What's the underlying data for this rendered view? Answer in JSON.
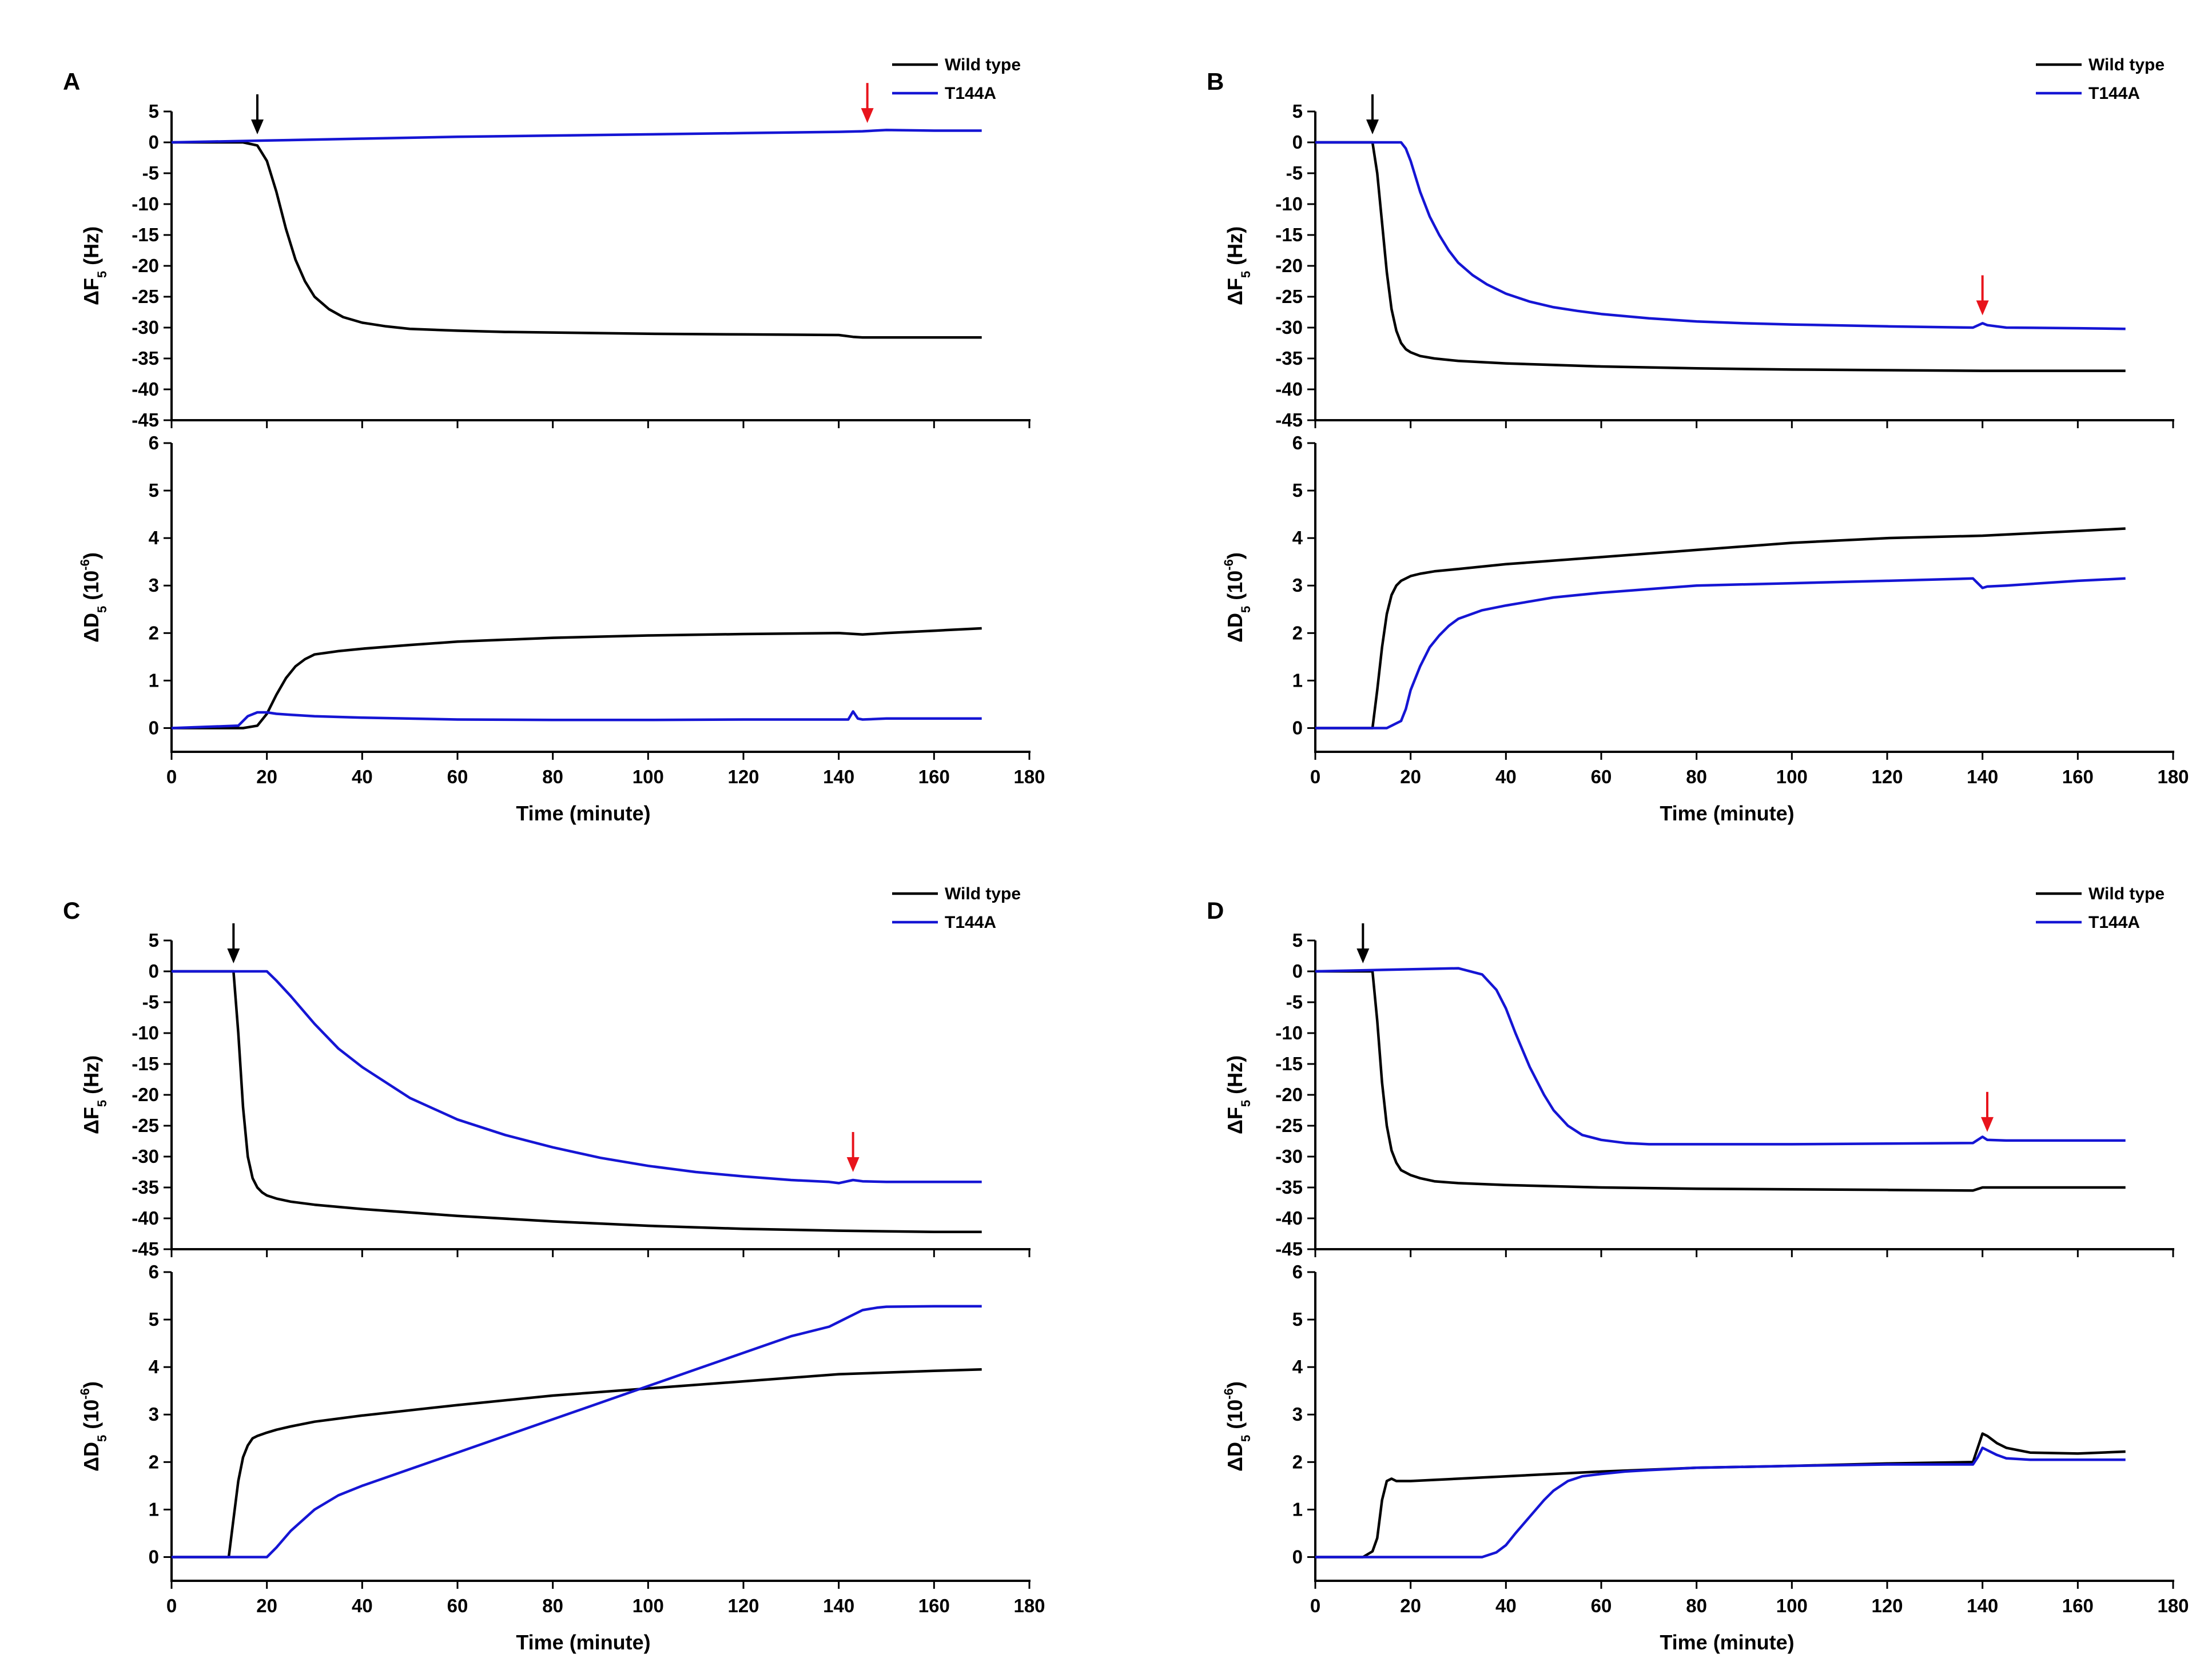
{
  "figure": {
    "description_free": true,
    "shared_axes": {
      "xlabel": "Time (minute)",
      "xlim": [
        0,
        180
      ],
      "xticks": [
        0,
        20,
        40,
        60,
        80,
        100,
        120,
        140,
        160,
        180
      ],
      "top_ylabel_main": "ΔF",
      "top_ylabel_sub": "5",
      "top_ylabel_unit": " (Hz)",
      "top_ylim": [
        -45,
        5
      ],
      "top_yticks": [
        5,
        0,
        -5,
        -10,
        -15,
        -20,
        -25,
        -30,
        -35,
        -40,
        -45
      ],
      "bottom_ylabel_main": "ΔD",
      "bottom_ylabel_sub": "5",
      "bottom_ylabel_unit_open": " (10",
      "bottom_ylabel_exp": "-6",
      "bottom_ylabel_unit_close": ")",
      "bottom_ylim": [
        -0.5,
        6
      ],
      "bottom_yticks": [
        6,
        5,
        4,
        3,
        2,
        1,
        0
      ]
    },
    "legend": [
      {
        "label": "Wild type",
        "color": "#000000"
      },
      {
        "label": "T144A",
        "color": "#1515d4"
      }
    ],
    "arrow_colors": {
      "black": "#000000",
      "red": "#e8141c"
    }
  },
  "chart_data": [
    {
      "type": "line",
      "panel": "A",
      "title": "",
      "arrows": {
        "black_x": 18,
        "red_x": 146
      },
      "top": {
        "series": [
          {
            "name": "Wild type",
            "x": [
              0,
              15,
              18,
              20,
              22,
              24,
              26,
              28,
              30,
              33,
              36,
              40,
              45,
              50,
              60,
              70,
              80,
              100,
              120,
              140,
              143,
              145,
              150,
              160,
              170
            ],
            "y": [
              0,
              0,
              -0.5,
              -3,
              -8,
              -14,
              -19,
              -22.5,
              -25,
              -27,
              -28.3,
              -29.2,
              -29.8,
              -30.2,
              -30.5,
              -30.7,
              -30.8,
              -31,
              -31.1,
              -31.2,
              -31.5,
              -31.6,
              -31.6,
              -31.6,
              -31.6
            ]
          },
          {
            "name": "T144A",
            "x": [
              0,
              20,
              40,
              60,
              80,
              100,
              120,
              140,
              145,
              150,
              160,
              170
            ],
            "y": [
              0,
              0.3,
              0.6,
              0.9,
              1.1,
              1.3,
              1.5,
              1.7,
              1.8,
              2,
              1.9,
              1.9
            ]
          }
        ]
      },
      "bottom": {
        "series": [
          {
            "name": "Wild type",
            "x": [
              0,
              15,
              18,
              20,
              22,
              24,
              26,
              28,
              30,
              35,
              40,
              50,
              60,
              80,
              100,
              120,
              140,
              145,
              150,
              160,
              170
            ],
            "y": [
              0,
              0,
              0.05,
              0.3,
              0.7,
              1.05,
              1.3,
              1.45,
              1.55,
              1.62,
              1.67,
              1.75,
              1.82,
              1.9,
              1.95,
              1.98,
              2,
              1.97,
              2,
              2.05,
              2.1
            ]
          },
          {
            "name": "T144A",
            "x": [
              0,
              14,
              16,
              18,
              20,
              22,
              25,
              30,
              40,
              60,
              80,
              100,
              120,
              142,
              143,
              144,
              145,
              150,
              170
            ],
            "y": [
              0,
              0.05,
              0.25,
              0.33,
              0.33,
              0.3,
              0.28,
              0.25,
              0.22,
              0.18,
              0.17,
              0.17,
              0.18,
              0.18,
              0.35,
              0.2,
              0.18,
              0.2,
              0.2
            ]
          }
        ]
      }
    },
    {
      "type": "line",
      "panel": "B",
      "title": "",
      "arrows": {
        "black_x": 12,
        "red_x": 140
      },
      "top": {
        "series": [
          {
            "name": "Wild type",
            "x": [
              0,
              12,
              13,
              14,
              15,
              16,
              17,
              18,
              19,
              20,
              22,
              25,
              30,
              40,
              60,
              80,
              100,
              120,
              140,
              160,
              170
            ],
            "y": [
              0,
              0,
              -5,
              -13,
              -21,
              -27,
              -30.5,
              -32.5,
              -33.5,
              -34,
              -34.6,
              -35,
              -35.4,
              -35.8,
              -36.3,
              -36.6,
              -36.8,
              -36.9,
              -37,
              -37,
              -37
            ]
          },
          {
            "name": "T144A",
            "x": [
              0,
              18,
              19,
              20,
              22,
              24,
              26,
              28,
              30,
              33,
              36,
              40,
              45,
              50,
              55,
              60,
              70,
              80,
              90,
              100,
              120,
              138,
              140,
              141,
              145,
              160,
              170
            ],
            "y": [
              0,
              0,
              -1,
              -3,
              -8,
              -12,
              -15,
              -17.5,
              -19.5,
              -21.5,
              -23,
              -24.5,
              -25.8,
              -26.7,
              -27.3,
              -27.8,
              -28.5,
              -29,
              -29.3,
              -29.5,
              -29.8,
              -30,
              -29.3,
              -29.6,
              -30,
              -30.1,
              -30.2
            ]
          }
        ]
      },
      "bottom": {
        "series": [
          {
            "name": "Wild type",
            "x": [
              0,
              12,
              13,
              14,
              15,
              16,
              17,
              18,
              20,
              22,
              25,
              30,
              40,
              60,
              80,
              100,
              120,
              140,
              160,
              170
            ],
            "y": [
              0,
              0,
              0.8,
              1.7,
              2.4,
              2.8,
              3,
              3.1,
              3.2,
              3.25,
              3.3,
              3.35,
              3.45,
              3.6,
              3.75,
              3.9,
              4,
              4.05,
              4.15,
              4.2
            ]
          },
          {
            "name": "T144A",
            "x": [
              0,
              15,
              18,
              19,
              20,
              22,
              24,
              26,
              28,
              30,
              35,
              40,
              50,
              60,
              80,
              100,
              120,
              138,
              140,
              141,
              145,
              160,
              170
            ],
            "y": [
              0,
              0,
              0.15,
              0.4,
              0.8,
              1.3,
              1.7,
              1.95,
              2.15,
              2.3,
              2.48,
              2.58,
              2.75,
              2.85,
              3,
              3.05,
              3.1,
              3.15,
              2.95,
              2.98,
              3,
              3.1,
              3.15
            ]
          }
        ]
      }
    },
    {
      "type": "line",
      "panel": "C",
      "title": "",
      "arrows": {
        "black_x": 13,
        "red_x": 143
      },
      "top": {
        "series": [
          {
            "name": "Wild type",
            "x": [
              0,
              13,
              14,
              15,
              16,
              17,
              18,
              19,
              20,
              22,
              25,
              30,
              40,
              60,
              80,
              100,
              120,
              140,
              160,
              170
            ],
            "y": [
              0,
              0,
              -10,
              -22,
              -30,
              -33.5,
              -35,
              -35.8,
              -36.3,
              -36.8,
              -37.3,
              -37.8,
              -38.5,
              -39.6,
              -40.5,
              -41.2,
              -41.7,
              -42,
              -42.2,
              -42.2
            ]
          },
          {
            "name": "T144A",
            "x": [
              0,
              20,
              22,
              25,
              30,
              35,
              40,
              50,
              60,
              70,
              80,
              90,
              100,
              110,
              120,
              130,
              138,
              140,
              143,
              145,
              150,
              160,
              170
            ],
            "y": [
              0,
              0,
              -1.5,
              -4,
              -8.5,
              -12.5,
              -15.5,
              -20.5,
              -24,
              -26.5,
              -28.5,
              -30.2,
              -31.5,
              -32.5,
              -33.2,
              -33.8,
              -34.1,
              -34.3,
              -33.8,
              -34,
              -34.1,
              -34.1,
              -34.1
            ]
          }
        ]
      },
      "bottom": {
        "series": [
          {
            "name": "Wild type",
            "x": [
              0,
              12,
              13,
              14,
              15,
              16,
              17,
              18,
              20,
              22,
              25,
              30,
              40,
              60,
              80,
              100,
              120,
              140,
              160,
              170
            ],
            "y": [
              0,
              0,
              0.8,
              1.6,
              2.1,
              2.35,
              2.5,
              2.55,
              2.62,
              2.68,
              2.75,
              2.85,
              2.98,
              3.2,
              3.4,
              3.55,
              3.7,
              3.85,
              3.92,
              3.95
            ]
          },
          {
            "name": "T144A",
            "x": [
              0,
              20,
              22,
              25,
              30,
              35,
              40,
              50,
              60,
              70,
              80,
              90,
              100,
              110,
              120,
              130,
              138,
              140,
              142,
              145,
              148,
              150,
              160,
              170
            ],
            "y": [
              0,
              0,
              0.2,
              0.55,
              1,
              1.3,
              1.5,
              1.85,
              2.2,
              2.55,
              2.9,
              3.25,
              3.6,
              3.95,
              4.3,
              4.65,
              4.85,
              4.95,
              5.05,
              5.2,
              5.25,
              5.27,
              5.28,
              5.28
            ]
          }
        ]
      }
    },
    {
      "type": "line",
      "panel": "D",
      "title": "",
      "arrows": {
        "black_x": 10,
        "red_x": 141
      },
      "top": {
        "series": [
          {
            "name": "Wild type",
            "x": [
              0,
              12,
              13,
              14,
              15,
              16,
              17,
              18,
              20,
              22,
              25,
              30,
              40,
              60,
              80,
              100,
              120,
              138,
              140,
              145,
              160,
              170
            ],
            "y": [
              0,
              0,
              -8,
              -18,
              -25,
              -29,
              -31,
              -32.2,
              -33,
              -33.5,
              -34,
              -34.3,
              -34.6,
              -35,
              -35.2,
              -35.3,
              -35.4,
              -35.5,
              -35,
              -35,
              -35,
              -35
            ]
          },
          {
            "name": "T144A",
            "x": [
              0,
              30,
              35,
              38,
              40,
              42,
              45,
              48,
              50,
              53,
              56,
              60,
              65,
              70,
              80,
              100,
              120,
              138,
              140,
              141,
              145,
              160,
              170
            ],
            "y": [
              0,
              0.5,
              -0.5,
              -3,
              -6,
              -10,
              -15.5,
              -20,
              -22.5,
              -25,
              -26.5,
              -27.3,
              -27.8,
              -28,
              -28,
              -28,
              -27.9,
              -27.8,
              -26.8,
              -27.3,
              -27.4,
              -27.4,
              -27.4
            ]
          }
        ]
      },
      "bottom": {
        "series": [
          {
            "name": "Wild type",
            "x": [
              0,
              10,
              12,
              13,
              14,
              15,
              16,
              17,
              20,
              30,
              40,
              60,
              80,
              100,
              120,
              138,
              139,
              140,
              141,
              143,
              145,
              150,
              160,
              170
            ],
            "y": [
              0,
              0,
              0.12,
              0.4,
              1.2,
              1.6,
              1.65,
              1.6,
              1.6,
              1.65,
              1.7,
              1.8,
              1.88,
              1.92,
              1.97,
              2,
              2.3,
              2.6,
              2.55,
              2.4,
              2.3,
              2.2,
              2.18,
              2.22
            ]
          },
          {
            "name": "T144A",
            "x": [
              0,
              35,
              38,
              40,
              42,
              45,
              48,
              50,
              53,
              56,
              60,
              65,
              70,
              80,
              100,
              120,
              138,
              139,
              140,
              141,
              143,
              145,
              150,
              160,
              170
            ],
            "y": [
              0,
              0,
              0.1,
              0.25,
              0.5,
              0.85,
              1.2,
              1.4,
              1.6,
              1.7,
              1.75,
              1.8,
              1.83,
              1.88,
              1.92,
              1.95,
              1.95,
              2.1,
              2.3,
              2.25,
              2.15,
              2.08,
              2.05,
              2.05,
              2.05
            ]
          }
        ]
      }
    }
  ]
}
